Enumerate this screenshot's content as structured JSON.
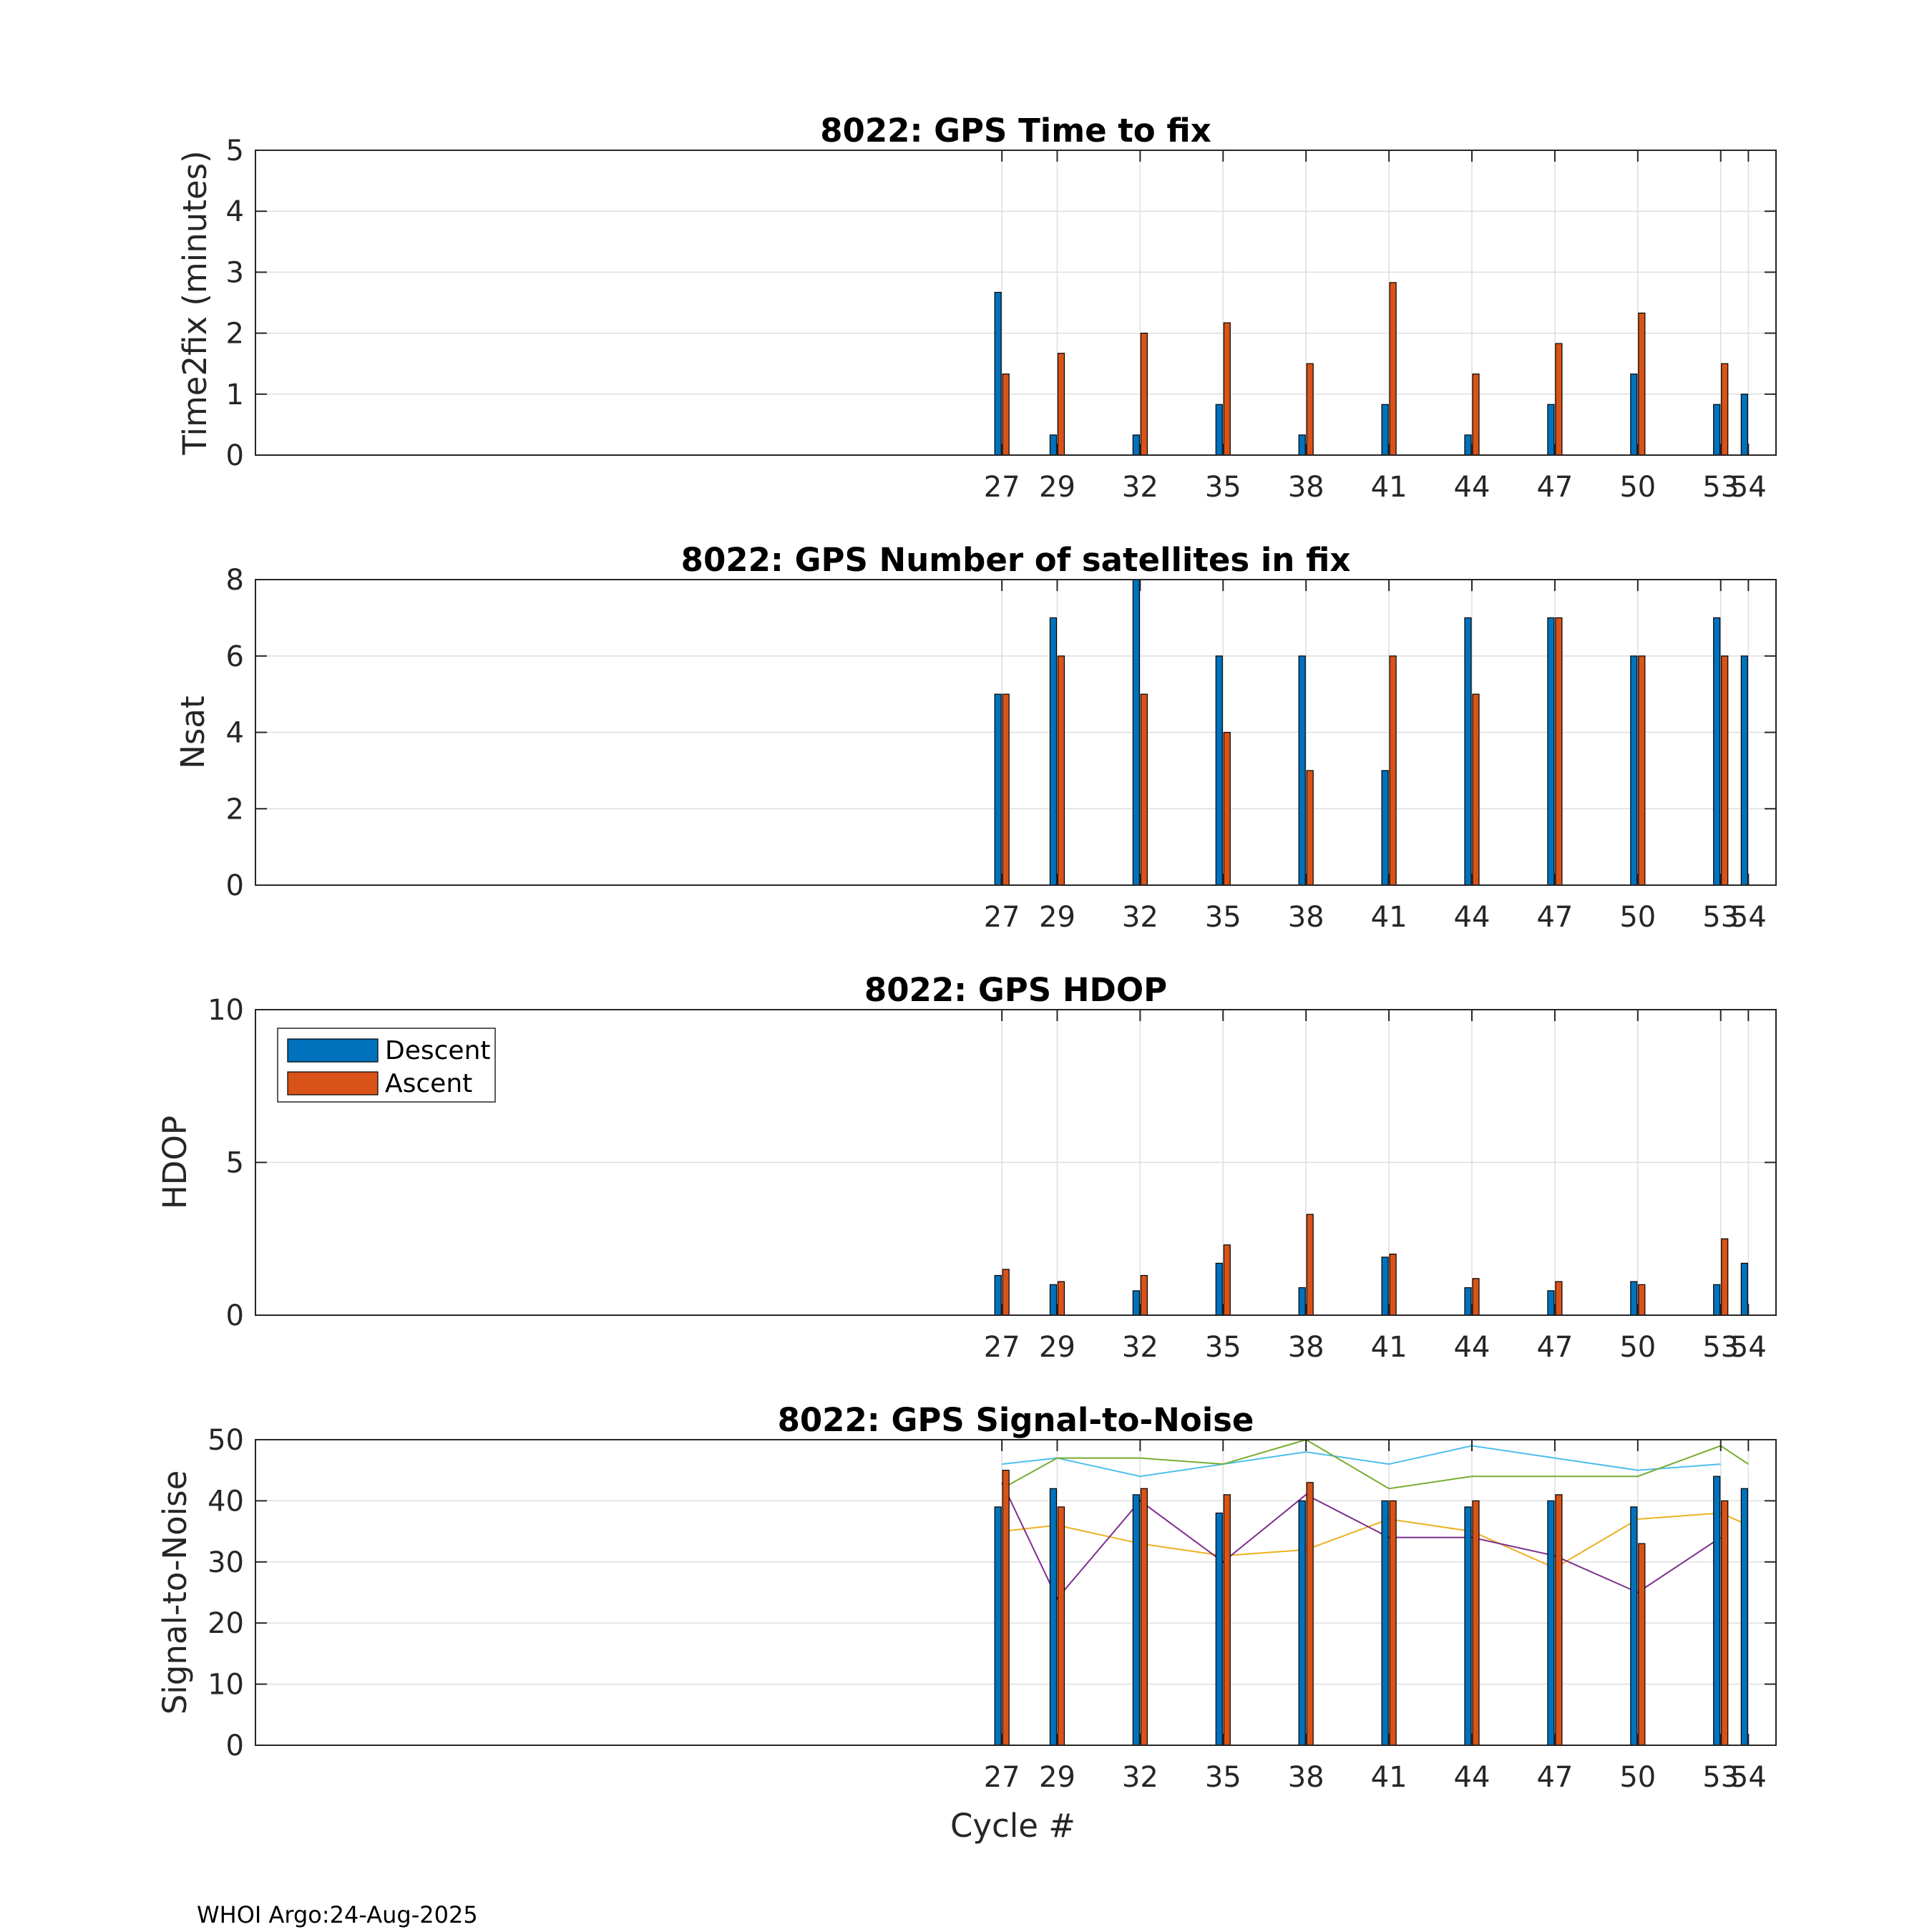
{
  "chart_data": [
    {
      "type": "bar",
      "title": "8022: GPS Time to fix",
      "ylabel": "Time2fix (minutes)",
      "xlabel": "",
      "ylim": [
        0,
        5
      ],
      "yticks": [
        0,
        1,
        2,
        3,
        4,
        5
      ],
      "xlim": [
        0,
        55
      ],
      "xticks": [
        27,
        29,
        32,
        35,
        38,
        41,
        44,
        47,
        50,
        53,
        54
      ],
      "grid": true,
      "series": [
        {
          "name": "Descent",
          "color": "#0072BD",
          "x": [
            27,
            29,
            32,
            35,
            38,
            41,
            44,
            47,
            50,
            53,
            54
          ],
          "values": [
            2.67,
            0.33,
            0.33,
            0.83,
            0.33,
            0.83,
            0.33,
            0.83,
            1.33,
            0.83,
            1.0
          ]
        },
        {
          "name": "Ascent",
          "color": "#D95319",
          "x": [
            27,
            29,
            32,
            35,
            38,
            41,
            44,
            47,
            50,
            53
          ],
          "values": [
            1.33,
            1.67,
            2.0,
            2.17,
            1.5,
            2.83,
            1.33,
            1.83,
            2.33,
            1.5
          ]
        }
      ]
    },
    {
      "type": "bar",
      "title": "8022: GPS Number of satellites in fix",
      "ylabel": "Nsat",
      "xlabel": "",
      "ylim": [
        0,
        8
      ],
      "yticks": [
        0,
        2,
        4,
        6,
        8
      ],
      "xlim": [
        0,
        55
      ],
      "xticks": [
        27,
        29,
        32,
        35,
        38,
        41,
        44,
        47,
        50,
        53,
        54
      ],
      "grid": true,
      "series": [
        {
          "name": "Descent",
          "color": "#0072BD",
          "x": [
            27,
            29,
            32,
            35,
            38,
            41,
            44,
            47,
            50,
            53,
            54
          ],
          "values": [
            5,
            7,
            8,
            6,
            6,
            3,
            7,
            7,
            6,
            7,
            6
          ]
        },
        {
          "name": "Ascent",
          "color": "#D95319",
          "x": [
            27,
            29,
            32,
            35,
            38,
            41,
            44,
            47,
            50,
            53
          ],
          "values": [
            5,
            6,
            5,
            4,
            3,
            6,
            5,
            7,
            6,
            6
          ]
        }
      ]
    },
    {
      "type": "bar",
      "title": "8022: GPS HDOP",
      "ylabel": "HDOP",
      "xlabel": "",
      "ylim": [
        0,
        10
      ],
      "yticks": [
        0,
        5,
        10
      ],
      "xlim": [
        0,
        55
      ],
      "xticks": [
        27,
        29,
        32,
        35,
        38,
        41,
        44,
        47,
        50,
        53,
        54
      ],
      "grid": true,
      "legend": {
        "placement": "top-left",
        "entries": [
          "Descent",
          "Ascent"
        ]
      },
      "series": [
        {
          "name": "Descent",
          "color": "#0072BD",
          "x": [
            27,
            29,
            32,
            35,
            38,
            41,
            44,
            47,
            50,
            53,
            54
          ],
          "values": [
            1.3,
            1.0,
            0.8,
            1.7,
            0.9,
            1.9,
            0.9,
            0.8,
            1.1,
            1.0,
            1.7
          ]
        },
        {
          "name": "Ascent",
          "color": "#D95319",
          "x": [
            27,
            29,
            32,
            35,
            38,
            41,
            44,
            47,
            50,
            53
          ],
          "values": [
            1.5,
            1.1,
            1.3,
            2.3,
            3.3,
            2.0,
            1.2,
            1.1,
            1.0,
            2.5
          ]
        }
      ]
    },
    {
      "type": "bar",
      "title": "8022: GPS Signal-to-Noise",
      "ylabel": "Signal-to-Noise",
      "xlabel": "Cycle #",
      "ylim": [
        0,
        50
      ],
      "yticks": [
        0,
        10,
        20,
        30,
        40,
        50
      ],
      "xlim": [
        0,
        55
      ],
      "xticks": [
        27,
        29,
        32,
        35,
        38,
        41,
        44,
        47,
        50,
        53,
        54
      ],
      "grid": true,
      "series": [
        {
          "name": "Descent",
          "color": "#0072BD",
          "x": [
            27,
            29,
            32,
            35,
            38,
            41,
            44,
            47,
            50,
            53,
            54
          ],
          "values": [
            39,
            42,
            41,
            38,
            40,
            40,
            39,
            40,
            39,
            44,
            42
          ]
        },
        {
          "name": "Ascent",
          "color": "#D95319",
          "x": [
            27,
            29,
            32,
            35,
            38,
            41,
            44,
            47,
            50,
            53
          ],
          "values": [
            45,
            39,
            42,
            41,
            43,
            40,
            40,
            41,
            33,
            40
          ]
        }
      ],
      "lines": [
        {
          "color": "#4DBEEE",
          "x": [
            27,
            29,
            32,
            35,
            38,
            41,
            44,
            47,
            50,
            53
          ],
          "values": [
            46,
            47,
            44,
            46,
            48,
            46,
            49,
            47,
            45,
            46
          ]
        },
        {
          "color": "#77AC30",
          "x": [
            27,
            29,
            32,
            35,
            38,
            41,
            44,
            47,
            50,
            53,
            54
          ],
          "values": [
            42,
            47,
            47,
            46,
            51,
            42,
            44,
            44,
            44,
            49,
            46
          ]
        },
        {
          "color": "#EDB120",
          "x": [
            27,
            29,
            32,
            35,
            38,
            41,
            44,
            47,
            50,
            53,
            54
          ],
          "values": [
            35,
            36,
            33,
            31,
            32,
            37,
            35,
            29,
            37,
            38,
            36
          ]
        },
        {
          "color": "#7E2F8E",
          "x": [
            27,
            29,
            32,
            35,
            38,
            41,
            44,
            47,
            50,
            53
          ],
          "values": [
            43,
            24,
            40,
            30,
            41,
            34,
            34,
            31,
            25,
            34
          ]
        }
      ]
    }
  ],
  "footer": "WHOI Argo:24-Aug-2025"
}
